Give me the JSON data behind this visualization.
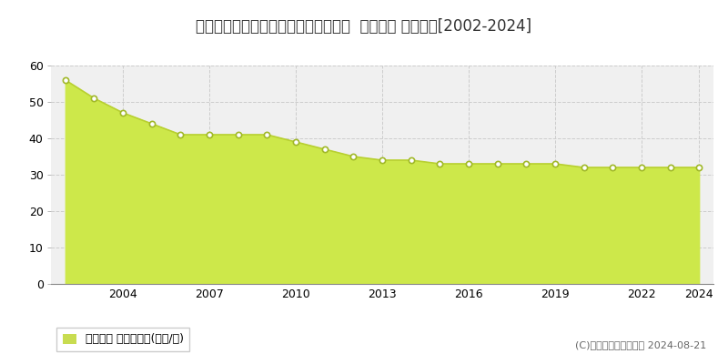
{
  "title": "岐阜県岐阜市真砂町５丁目２２番３外  地価公示 地価推移[2002-2024]",
  "years": [
    2002,
    2003,
    2004,
    2005,
    2006,
    2007,
    2008,
    2009,
    2010,
    2011,
    2012,
    2013,
    2014,
    2015,
    2016,
    2017,
    2018,
    2019,
    2020,
    2021,
    2022,
    2023,
    2024
  ],
  "values": [
    56,
    51,
    47,
    44,
    41,
    41,
    41,
    41,
    39,
    37,
    35,
    34,
    34,
    33,
    33,
    33,
    33,
    33,
    32,
    32,
    32,
    32,
    32
  ],
  "ylim": [
    0,
    60
  ],
  "yticks": [
    0,
    10,
    20,
    30,
    40,
    50,
    60
  ],
  "xticks": [
    2004,
    2007,
    2010,
    2013,
    2016,
    2019,
    2022,
    2024
  ],
  "fill_color": "#cde84a",
  "line_color": "#b8d030",
  "marker_facecolor": "#ffffff",
  "marker_edgecolor": "#a0b828",
  "background_color": "#ffffff",
  "plot_bg_color": "#f0f0f0",
  "grid_color": "#cccccc",
  "legend_label": "地価公示 平均坪単価(万円/坪)",
  "legend_color": "#c8dc50",
  "copyright_text": "(C)土地価格ドットコム 2024-08-21",
  "title_fontsize": 12,
  "axis_fontsize": 9,
  "legend_fontsize": 9,
  "xlim_left": 2001.5,
  "xlim_right": 2024.5
}
